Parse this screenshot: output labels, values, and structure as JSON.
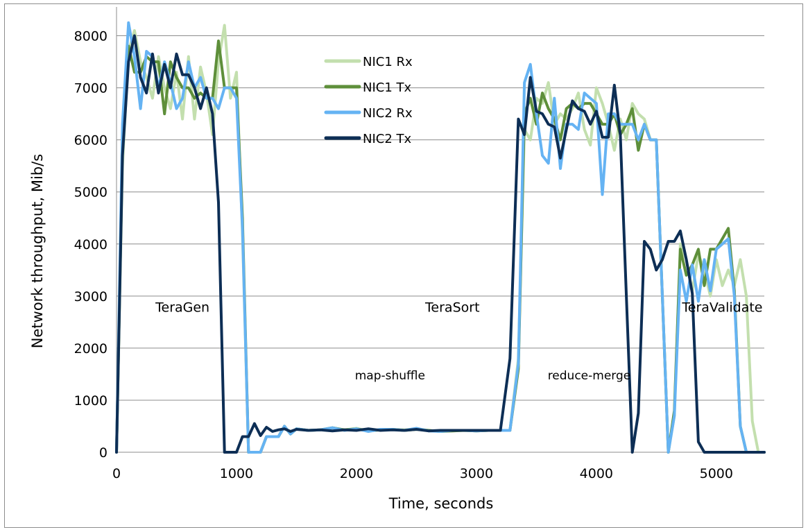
{
  "chart_data": {
    "type": "line",
    "title": "",
    "xlabel": "Time, seconds",
    "ylabel": "Network throughput, Mib/s",
    "xlim": [
      0,
      5400
    ],
    "ylim": [
      0,
      8500
    ],
    "xticks": [
      0,
      1000,
      2000,
      3000,
      4000,
      5000
    ],
    "yticks": [
      0,
      1000,
      2000,
      3000,
      4000,
      5000,
      6000,
      7000,
      8000
    ],
    "grid": "horizontal",
    "legend_position": "top-center",
    "annotations": [
      {
        "text": "TeraGen",
        "x": 550,
        "y": 2700
      },
      {
        "text": "TeraSort",
        "x": 2800,
        "y": 2700
      },
      {
        "text": "TeraValidate",
        "x": 5050,
        "y": 2700
      },
      {
        "text": "map-shuffle",
        "x": 2280,
        "y": 1400
      },
      {
        "text": "reduce-merge",
        "x": 3940,
        "y": 1400
      }
    ],
    "series": [
      {
        "name": "NIC1 Rx",
        "color": "#c3dfae",
        "width": 4,
        "x": [
          0,
          50,
          100,
          150,
          200,
          250,
          300,
          350,
          400,
          450,
          500,
          550,
          600,
          650,
          700,
          750,
          800,
          850,
          900,
          950,
          1000,
          1050,
          1100,
          1150,
          1200,
          1250,
          1300,
          1350,
          1400,
          1450,
          1500,
          1600,
          1700,
          1800,
          1900,
          2000,
          2100,
          2200,
          2300,
          2400,
          2500,
          2600,
          2700,
          2800,
          2900,
          3000,
          3100,
          3200,
          3280,
          3350,
          3400,
          3450,
          3500,
          3550,
          3600,
          3650,
          3700,
          3750,
          3800,
          3850,
          3900,
          3950,
          4000,
          4050,
          4100,
          4150,
          4200,
          4250,
          4300,
          4350,
          4400,
          4450,
          4500,
          4550,
          4600,
          4650,
          4700,
          4750,
          4800,
          4850,
          4900,
          4950,
          5000,
          5050,
          5100,
          5150,
          5200,
          5250,
          5300,
          5350,
          5400
        ],
        "y": [
          0,
          5500,
          7700,
          8100,
          7500,
          7200,
          6800,
          7600,
          7000,
          6600,
          7300,
          6400,
          7600,
          6400,
          7400,
          6900,
          6100,
          7500,
          8200,
          6800,
          7300,
          4200,
          0,
          0,
          0,
          300,
          300,
          300,
          500,
          350,
          450,
          420,
          430,
          470,
          430,
          460,
          410,
          430,
          440,
          430,
          450,
          420,
          400,
          410,
          420,
          410,
          420,
          420,
          420,
          1800,
          6200,
          6000,
          6800,
          6700,
          7100,
          6300,
          6500,
          6400,
          6600,
          6900,
          6200,
          5900,
          7000,
          6700,
          6300,
          5800,
          6400,
          6000,
          6700,
          6500,
          6400,
          6000,
          6000,
          3000,
          0,
          700,
          4000,
          3700,
          3100,
          3800,
          3500,
          3000,
          3700,
          3200,
          3500,
          3200,
          3700,
          3000,
          600,
          0,
          0
        ]
      },
      {
        "name": "NIC1 Tx",
        "color": "#5e8f3a",
        "width": 4,
        "x": [
          0,
          50,
          100,
          150,
          200,
          250,
          300,
          350,
          400,
          450,
          500,
          550,
          600,
          650,
          700,
          750,
          800,
          850,
          900,
          950,
          1000,
          1050,
          1100,
          1150,
          1200,
          1250,
          1300,
          1350,
          1400,
          1450,
          1500,
          1600,
          1700,
          1800,
          1900,
          2000,
          2100,
          2200,
          2300,
          2400,
          2500,
          2600,
          2700,
          2800,
          2900,
          3000,
          3100,
          3200,
          3280,
          3350,
          3400,
          3450,
          3500,
          3550,
          3600,
          3650,
          3700,
          3750,
          3800,
          3850,
          3900,
          3950,
          4000,
          4050,
          4100,
          4150,
          4200,
          4250,
          4300,
          4350,
          4400,
          4450,
          4500,
          4550,
          4600,
          4650,
          4700,
          4750,
          4800,
          4850,
          4900,
          4950,
          5000,
          5050,
          5100,
          5150,
          5200,
          5250,
          5300,
          5350,
          5400
        ],
        "y": [
          0,
          5800,
          7800,
          7300,
          7300,
          7600,
          7500,
          7500,
          6500,
          7500,
          7200,
          7000,
          7000,
          6800,
          6900,
          6800,
          6800,
          7900,
          7000,
          7000,
          7000,
          4500,
          0,
          0,
          0,
          300,
          300,
          300,
          500,
          350,
          450,
          420,
          430,
          470,
          430,
          450,
          410,
          430,
          440,
          420,
          440,
          420,
          400,
          410,
          420,
          410,
          420,
          420,
          420,
          1600,
          6500,
          6800,
          6300,
          6900,
          6600,
          6400,
          6000,
          6600,
          6700,
          6600,
          6700,
          6700,
          6500,
          6300,
          6300,
          6500,
          6100,
          6300,
          6600,
          5800,
          6300,
          6000,
          6000,
          3000,
          0,
          800,
          3900,
          3400,
          3600,
          3900,
          3200,
          3900,
          3900,
          4100,
          4300,
          3100,
          500,
          0,
          0,
          0,
          0
        ]
      },
      {
        "name": "NIC2 Rx",
        "color": "#65b3f3",
        "width": 4,
        "x": [
          0,
          50,
          100,
          150,
          200,
          250,
          300,
          350,
          400,
          450,
          500,
          550,
          600,
          650,
          700,
          750,
          800,
          850,
          900,
          950,
          1000,
          1050,
          1100,
          1150,
          1200,
          1250,
          1300,
          1350,
          1400,
          1450,
          1500,
          1600,
          1700,
          1800,
          1900,
          2000,
          2100,
          2200,
          2300,
          2400,
          2500,
          2600,
          2700,
          2800,
          2900,
          3000,
          3100,
          3200,
          3280,
          3350,
          3400,
          3450,
          3500,
          3550,
          3600,
          3650,
          3700,
          3750,
          3800,
          3850,
          3900,
          3950,
          4000,
          4050,
          4100,
          4150,
          4200,
          4250,
          4300,
          4350,
          4400,
          4450,
          4500,
          4550,
          4600,
          4650,
          4700,
          4750,
          4800,
          4850,
          4900,
          4950,
          5000,
          5050,
          5100,
          5150,
          5200,
          5250,
          5300,
          5350,
          5400
        ],
        "y": [
          0,
          6300,
          8250,
          7600,
          6600,
          7700,
          7600,
          7000,
          7500,
          7100,
          6600,
          6800,
          7500,
          7000,
          7200,
          6800,
          6800,
          6600,
          7000,
          7000,
          6800,
          4300,
          0,
          0,
          0,
          300,
          300,
          300,
          500,
          350,
          450,
          420,
          430,
          470,
          420,
          450,
          400,
          440,
          440,
          420,
          460,
          410,
          400,
          420,
          420,
          410,
          420,
          420,
          420,
          1700,
          7100,
          7450,
          6500,
          5700,
          5550,
          6800,
          5450,
          6300,
          6300,
          6200,
          6900,
          6800,
          6700,
          4950,
          6500,
          6500,
          6300,
          6300,
          6300,
          6000,
          6300,
          6000,
          6000,
          3000,
          0,
          700,
          3500,
          2900,
          3600,
          2900,
          3700,
          3100,
          3900,
          4000,
          4100,
          3000,
          500,
          0,
          0,
          0,
          0
        ]
      },
      {
        "name": "NIC2 Tx",
        "color": "#0d2e55",
        "width": 4,
        "x": [
          0,
          50,
          100,
          150,
          200,
          250,
          300,
          350,
          400,
          450,
          500,
          550,
          600,
          650,
          700,
          750,
          800,
          850,
          900,
          950,
          1000,
          1050,
          1100,
          1150,
          1200,
          1250,
          1300,
          1350,
          1400,
          1450,
          1500,
          1600,
          1700,
          1800,
          1900,
          2000,
          2100,
          2200,
          2300,
          2400,
          2500,
          2600,
          2700,
          2800,
          2900,
          3000,
          3100,
          3200,
          3280,
          3350,
          3400,
          3450,
          3500,
          3550,
          3600,
          3650,
          3700,
          3750,
          3800,
          3850,
          3900,
          3950,
          4000,
          4050,
          4100,
          4150,
          4200,
          4250,
          4300,
          4350,
          4400,
          4450,
          4500,
          4550,
          4600,
          4650,
          4700,
          4750,
          4800,
          4850,
          4900,
          4950,
          5000,
          5050,
          5100,
          5150,
          5200,
          5250,
          5300,
          5350,
          5400
        ],
        "y": [
          0,
          5700,
          7500,
          8000,
          7200,
          6900,
          7650,
          6900,
          7450,
          7000,
          7650,
          7250,
          7250,
          7000,
          6600,
          7000,
          6500,
          4800,
          0,
          0,
          0,
          300,
          300,
          550,
          320,
          480,
          400,
          430,
          450,
          400,
          440,
          420,
          430,
          410,
          430,
          420,
          450,
          420,
          430,
          420,
          440,
          410,
          420,
          420,
          420,
          420,
          420,
          420,
          1800,
          6400,
          6100,
          7200,
          6550,
          6500,
          6300,
          6250,
          5650,
          6200,
          6750,
          6600,
          6550,
          6300,
          6550,
          6050,
          6050,
          7050,
          6100,
          3000,
          0,
          750,
          4050,
          3900,
          3500,
          3700,
          4050,
          4050,
          4250,
          3700,
          3050,
          200,
          0,
          0,
          0,
          0,
          0,
          0,
          0,
          0,
          0,
          0,
          0
        ]
      }
    ]
  }
}
